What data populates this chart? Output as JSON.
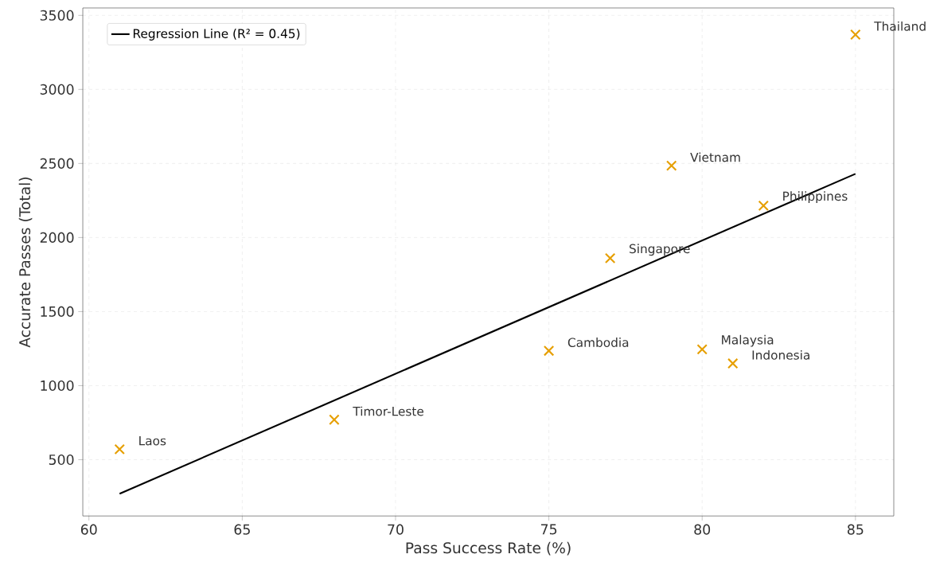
{
  "chart_data": {
    "type": "scatter",
    "xlabel": "Pass Success Rate (%)",
    "ylabel": "Accurate Passes (Total)",
    "xlim": [
      59.8,
      86.25
    ],
    "ylim": [
      120,
      3550
    ],
    "xticks": [
      60,
      65,
      70,
      75,
      80,
      85
    ],
    "yticks": [
      500,
      1000,
      1500,
      2000,
      2500,
      3000,
      3500
    ],
    "grid": true,
    "legend": "top left",
    "series": [
      {
        "color": "#e69f00",
        "marker": "cross",
        "x": [
          61,
          68,
          75,
          77,
          79,
          80,
          81,
          82,
          85
        ],
        "values": [
          570,
          770,
          1235,
          1860,
          2485,
          1245,
          1150,
          2215,
          3370
        ]
      },
      {
        "type": "line",
        "name": "Regression Line (R² = 0.45)",
        "color": "#000000",
        "marker": "none",
        "line_style": "solid",
        "x": [
          61,
          85
        ],
        "values": [
          270,
          2430
        ]
      }
    ],
    "annotations": [
      {
        "text": "Laos",
        "x": 61,
        "y": 570
      },
      {
        "text": "Timor-Leste",
        "x": 68,
        "y": 770
      },
      {
        "text": "Cambodia",
        "x": 75,
        "y": 1235
      },
      {
        "text": "Singapore",
        "x": 77,
        "y": 1860
      },
      {
        "text": "Vietnam",
        "x": 79,
        "y": 2485
      },
      {
        "text": "Malaysia",
        "x": 80,
        "y": 1245
      },
      {
        "text": "Indonesia",
        "x": 81,
        "y": 1150
      },
      {
        "text": "Philippines",
        "x": 82,
        "y": 2215
      },
      {
        "text": "Thailand",
        "x": 85,
        "y": 3370
      }
    ]
  }
}
